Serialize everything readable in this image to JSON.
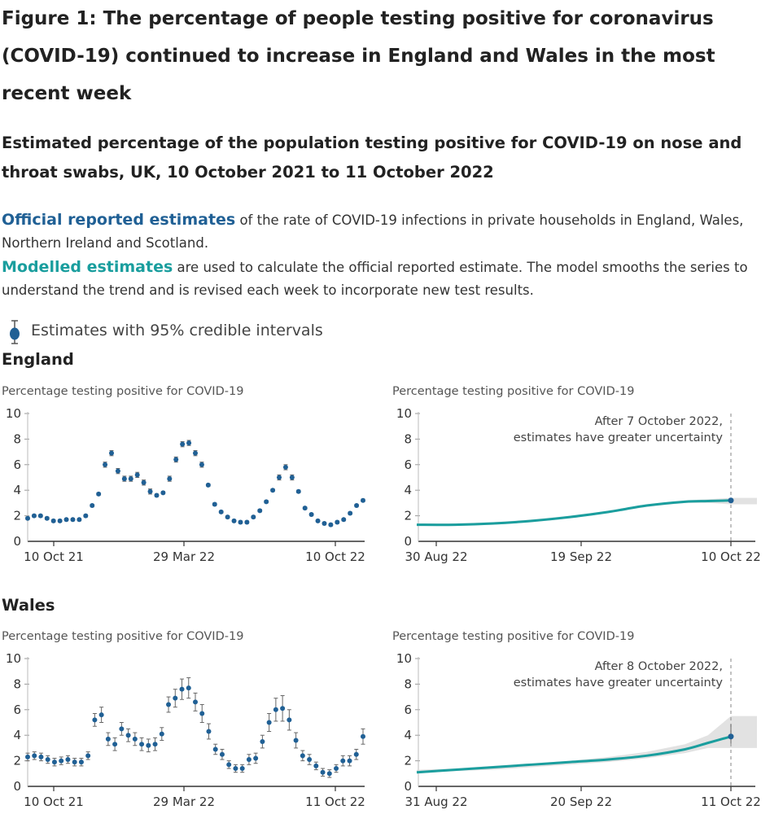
{
  "figure": {
    "title": "Figure 1: The percentage of people testing positive for coronavirus (COVID-19) continued to increase in England and Wales in the most recent week",
    "subtitle": "Estimated percentage of the population testing positive for COVID-19 on nose and throat swabs, UK, 10 October 2021 to 11 October 2022"
  },
  "description": {
    "official_keyword": "Official reported estimates",
    "official_text": " of the rate of COVID-19 infections in private households in England, Wales, Northern Ireland and Scotland.",
    "modelled_keyword": "Modelled estimates",
    "modelled_text": " are used to calculate the official reported estimate. The model smooths the series to understand the trend and is revised each week to incorporate new test results."
  },
  "legend": {
    "label": "Estimates with 95% credible intervals",
    "icon": "error-bar-point-icon"
  },
  "colors": {
    "official": "#206095",
    "modelled": "#1a9e9e",
    "band": "#d8d8d8",
    "axis": "#333333"
  },
  "regions": {
    "england": "England",
    "wales": "Wales"
  },
  "chart_data": [
    {
      "id": "england-official",
      "region": "England",
      "type": "scatter",
      "ylabel": "Percentage testing positive for COVID-19",
      "ylim": [
        0,
        10
      ],
      "yticks": [
        "0",
        "2",
        "4",
        "6",
        "8",
        "10"
      ],
      "xticks": [
        "10 Oct 21",
        "29 Mar 22",
        "10 Oct 22"
      ],
      "error_bars": true,
      "series": [
        {
          "values": [
            1.8,
            2.0,
            2.0,
            1.8,
            1.6,
            1.6,
            1.7,
            1.7,
            1.7,
            2.0,
            2.8,
            3.7,
            6.0,
            6.9,
            5.5,
            4.9,
            4.9,
            5.2,
            4.6,
            3.9,
            3.6,
            3.8,
            4.9,
            6.4,
            7.6,
            7.7,
            6.9,
            6.0,
            4.4,
            2.9,
            2.3,
            1.9,
            1.6,
            1.5,
            1.5,
            1.9,
            2.4,
            3.1,
            4.0,
            5.0,
            5.8,
            5.0,
            3.9,
            2.6,
            2.1,
            1.6,
            1.4,
            1.3,
            1.5,
            1.7,
            2.2,
            2.8,
            3.2
          ],
          "ci": [
            0.1,
            0.1,
            0.1,
            0.1,
            0.1,
            0.1,
            0.1,
            0.1,
            0.1,
            0.1,
            0.1,
            0.1,
            0.2,
            0.2,
            0.2,
            0.2,
            0.2,
            0.2,
            0.2,
            0.2,
            0.1,
            0.1,
            0.2,
            0.2,
            0.2,
            0.2,
            0.2,
            0.2,
            0.1,
            0.1,
            0.1,
            0.1,
            0.1,
            0.1,
            0.1,
            0.1,
            0.1,
            0.1,
            0.1,
            0.2,
            0.2,
            0.2,
            0.1,
            0.1,
            0.1,
            0.1,
            0.1,
            0.1,
            0.1,
            0.1,
            0.1,
            0.1,
            0.1
          ]
        }
      ]
    },
    {
      "id": "england-modelled",
      "region": "England",
      "type": "line",
      "ylabel": "Percentage testing positive for COVID-19",
      "ylim": [
        0,
        10
      ],
      "yticks": [
        "0",
        "2",
        "4",
        "6",
        "8",
        "10"
      ],
      "xticks": [
        "30 Aug 22",
        "19 Sep 22",
        "10 Oct 22"
      ],
      "annotation": "After 7 October 2022, estimates have greater uncertainty",
      "series": [
        {
          "x_days_label": "days from 30 Aug 22",
          "x": [
            0,
            5,
            10,
            15,
            20,
            25,
            30,
            35,
            38,
            41
          ],
          "values": [
            1.3,
            1.3,
            1.4,
            1.6,
            1.9,
            2.3,
            2.8,
            3.1,
            3.15,
            3.2
          ],
          "band_low": [
            1.2,
            1.2,
            1.3,
            1.5,
            1.8,
            2.2,
            2.7,
            3.0,
            3.0,
            2.9
          ],
          "band_high": [
            1.4,
            1.4,
            1.5,
            1.7,
            2.0,
            2.4,
            2.9,
            3.2,
            3.3,
            3.4
          ]
        }
      ],
      "final_estimate": 3.2
    },
    {
      "id": "wales-official",
      "region": "Wales",
      "type": "scatter",
      "ylabel": "Percentage testing positive for COVID-19",
      "ylim": [
        0,
        10
      ],
      "yticks": [
        "0",
        "2",
        "4",
        "6",
        "8",
        "10"
      ],
      "xticks": [
        "10 Oct 21",
        "29 Mar 22",
        "11 Oct 22"
      ],
      "error_bars": true,
      "series": [
        {
          "values": [
            2.3,
            2.4,
            2.3,
            2.1,
            1.9,
            2.0,
            2.1,
            1.9,
            1.9,
            2.4,
            5.2,
            5.6,
            3.7,
            3.3,
            4.5,
            4.0,
            3.7,
            3.3,
            3.2,
            3.3,
            4.1,
            6.4,
            6.9,
            7.6,
            7.7,
            6.6,
            5.7,
            4.3,
            2.9,
            2.5,
            1.7,
            1.4,
            1.4,
            2.1,
            2.2,
            3.5,
            5.0,
            6.0,
            6.1,
            5.2,
            3.6,
            2.4,
            2.1,
            1.6,
            1.1,
            1.0,
            1.4,
            2.0,
            2.0,
            2.5,
            3.9
          ],
          "ci": [
            0.3,
            0.3,
            0.3,
            0.3,
            0.3,
            0.3,
            0.3,
            0.3,
            0.3,
            0.3,
            0.5,
            0.6,
            0.5,
            0.5,
            0.5,
            0.5,
            0.5,
            0.5,
            0.5,
            0.5,
            0.5,
            0.6,
            0.7,
            0.8,
            0.8,
            0.7,
            0.7,
            0.6,
            0.4,
            0.4,
            0.3,
            0.3,
            0.3,
            0.4,
            0.4,
            0.5,
            0.7,
            0.9,
            1.0,
            0.8,
            0.6,
            0.4,
            0.4,
            0.3,
            0.3,
            0.3,
            0.3,
            0.4,
            0.4,
            0.4,
            0.6
          ]
        }
      ]
    },
    {
      "id": "wales-modelled",
      "region": "Wales",
      "type": "line",
      "ylabel": "Percentage testing positive for COVID-19",
      "ylim": [
        0,
        10
      ],
      "yticks": [
        "0",
        "2",
        "4",
        "6",
        "8",
        "10"
      ],
      "xticks": [
        "31 Aug 22",
        "20 Sep 22",
        "11 Oct 22"
      ],
      "annotation": "After 8 October 2022, estimates have greater uncertainty",
      "series": [
        {
          "x_days_label": "days from 31 Aug 22",
          "x": [
            0,
            5,
            10,
            15,
            20,
            25,
            30,
            35,
            38,
            41
          ],
          "values": [
            1.1,
            1.3,
            1.5,
            1.7,
            1.9,
            2.1,
            2.4,
            2.9,
            3.4,
            3.9
          ],
          "band_low": [
            1.0,
            1.2,
            1.3,
            1.5,
            1.7,
            1.9,
            2.2,
            2.6,
            3.0,
            3.0
          ],
          "band_high": [
            1.3,
            1.4,
            1.6,
            1.8,
            2.0,
            2.3,
            2.7,
            3.3,
            4.0,
            5.5
          ]
        }
      ],
      "final_estimate": 3.9
    }
  ]
}
